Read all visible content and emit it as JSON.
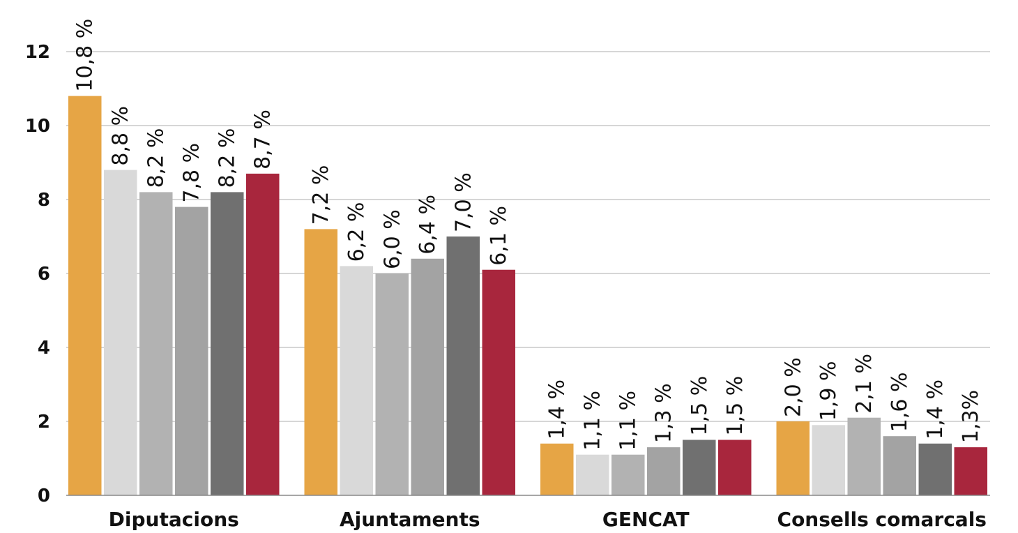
{
  "chart_data": {
    "type": "bar",
    "categories": [
      "Diputacions",
      "Ajuntaments",
      "GENCAT",
      "Consells comarcals"
    ],
    "series": [
      {
        "values": [
          10.8,
          7.2,
          1.4,
          2.0
        ],
        "labels": [
          "10,8 %",
          "7,2 %",
          "1,4 %",
          "2,0 %"
        ],
        "color": "#E6A545"
      },
      {
        "values": [
          8.8,
          6.2,
          1.1,
          1.9
        ],
        "labels": [
          "8,8 %",
          "6,2 %",
          "1,1 %",
          "1,9 %"
        ],
        "color": "#D9D9D9"
      },
      {
        "values": [
          8.2,
          6.0,
          1.1,
          2.1
        ],
        "labels": [
          "8,2 %",
          "6,0 %",
          "1,1 %",
          "2,1 %"
        ],
        "color": "#B2B2B2"
      },
      {
        "values": [
          7.8,
          6.4,
          1.3,
          1.6
        ],
        "labels": [
          "7,8 %",
          "6,4 %",
          "1,3 %",
          "1,6 %"
        ],
        "color": "#A3A3A3"
      },
      {
        "values": [
          8.2,
          7.0,
          1.5,
          1.4
        ],
        "labels": [
          "8,2 %",
          "7,0 %",
          "1,5 %",
          "1,4 %"
        ],
        "color": "#707070"
      },
      {
        "values": [
          8.7,
          6.1,
          1.5,
          1.3
        ],
        "labels": [
          "8,7 %",
          "6,1 %",
          "1,5 %",
          "1,3%"
        ],
        "color": "#A8263D"
      }
    ],
    "yticks": [
      "0",
      "2",
      "4",
      "6",
      "8",
      "10",
      "12"
    ],
    "ylim": [
      0,
      12
    ],
    "grid": true,
    "legend": "none"
  }
}
